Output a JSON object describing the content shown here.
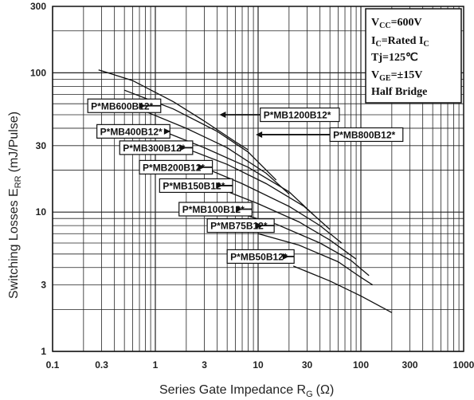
{
  "chart_data": {
    "type": "line",
    "x_scale": "log",
    "y_scale": "log",
    "xlim": [
      0.1,
      1000
    ],
    "ylim": [
      1,
      300
    ],
    "grid": true,
    "xlabel_main": "Series Gate Impedance R",
    "xlabel_sub": "G",
    "xlabel_unit": "(Ω)",
    "ylabel_main": "Switching Losses E",
    "ylabel_sub": "RR",
    "ylabel_unit": "(mJ/Pulse)",
    "x_ticks": [
      "0.1",
      "0.3",
      "1",
      "3",
      "10",
      "30",
      "100",
      "300",
      "1000"
    ],
    "y_ticks": [
      "1",
      "3",
      "10",
      "30",
      "100",
      "300"
    ],
    "conditions": {
      "vcc_main": "V",
      "vcc_sub": "CC",
      "vcc_rest": "=600V",
      "ic_main": "I",
      "ic_sub": "C",
      "ic_rest": "=Rated I",
      "ic_sub2": "C",
      "tj": "Tj=125℃",
      "vge_main": "V",
      "vge_sub": "GE",
      "vge_rest": "=±15V",
      "topology": "Half Bridge"
    },
    "series": [
      {
        "name": "P*MB1200B12*",
        "points": [
          [
            0.28,
            105
          ],
          [
            0.6,
            88
          ],
          [
            1.5,
            62
          ],
          [
            3,
            45
          ],
          [
            6,
            32
          ],
          [
            8,
            28
          ]
        ]
      },
      {
        "name": "P*MB800B12*",
        "points": [
          [
            0.5,
            75
          ],
          [
            1.5,
            55
          ],
          [
            4,
            38
          ],
          [
            8,
            27
          ],
          [
            15,
            17
          ]
        ]
      },
      {
        "name": "P*MB600B12*",
        "points": [
          [
            0.7,
            55
          ],
          [
            2,
            40
          ],
          [
            5,
            29
          ],
          [
            12,
            19
          ],
          [
            20,
            13.5
          ]
        ]
      },
      {
        "name": "P*MB400B12*",
        "points": [
          [
            1.2,
            38
          ],
          [
            3,
            29
          ],
          [
            8,
            21
          ],
          [
            20,
            14
          ],
          [
            35,
            9.5
          ]
        ]
      },
      {
        "name": "P*MB300B12*",
        "points": [
          [
            1.5,
            31
          ],
          [
            5,
            22
          ],
          [
            12,
            16
          ],
          [
            28,
            11
          ],
          [
            50,
            7.5
          ]
        ]
      },
      {
        "name": "P*MB200B12*",
        "points": [
          [
            2.5,
            22
          ],
          [
            7,
            16
          ],
          [
            20,
            11
          ],
          [
            40,
            8
          ],
          [
            65,
            6
          ]
        ]
      },
      {
        "name": "P*MB150B12*",
        "points": [
          [
            4,
            15
          ],
          [
            10,
            11.5
          ],
          [
            25,
            8.5
          ],
          [
            50,
            6.3
          ],
          [
            90,
            4.6
          ]
        ]
      },
      {
        "name": "P*MB100B12*",
        "points": [
          [
            6,
            10
          ],
          [
            15,
            8.2
          ],
          [
            40,
            6
          ],
          [
            80,
            4.5
          ],
          [
            120,
            3.5
          ]
        ]
      },
      {
        "name": "P*MB75B12*",
        "points": [
          [
            10,
            7
          ],
          [
            25,
            5.8
          ],
          [
            60,
            4.4
          ],
          [
            100,
            3.4
          ],
          [
            130,
            3
          ]
        ]
      },
      {
        "name": "P*MB50B12*",
        "points": [
          [
            22,
            4.1
          ],
          [
            50,
            3.2
          ],
          [
            100,
            2.5
          ],
          [
            200,
            1.9
          ]
        ]
      }
    ]
  },
  "labels": [
    {
      "text": "P*MB600B12*",
      "series": 2,
      "side": "left",
      "bx": 0.22,
      "by": 58,
      "arrow_to": 0.8
    },
    {
      "text": "P*MB1200B12*",
      "series": 0,
      "side": "right",
      "bx": 10.5,
      "by": 50,
      "arrow_to": 4.2
    },
    {
      "text": "P*MB400B12*",
      "series": 3,
      "side": "left",
      "bx": 0.27,
      "by": 38,
      "arrow_to": 1.4
    },
    {
      "text": "P*MB800B12*",
      "series": 1,
      "side": "right",
      "bx": 50,
      "by": 36,
      "arrow_to": 9.5
    },
    {
      "text": "P*MB300B12*",
      "series": 4,
      "side": "left",
      "bx": 0.45,
      "by": 29,
      "arrow_to": 2.0
    },
    {
      "text": "P*MB200B12*",
      "series": 5,
      "side": "left",
      "bx": 0.7,
      "by": 21,
      "arrow_to": 3.0
    },
    {
      "text": "P*MB150B12*",
      "series": 6,
      "side": "left",
      "bx": 1.1,
      "by": 15.5,
      "arrow_to": 4.5
    },
    {
      "text": "P*MB100B12*",
      "series": 7,
      "side": "left",
      "bx": 1.7,
      "by": 10.5,
      "arrow_to": 7.0
    },
    {
      "text": "P*MB75B12*",
      "series": 8,
      "side": "left",
      "bx": 3.2,
      "by": 8.0,
      "arrow_to": 11
    },
    {
      "text": "P*MB50B12*",
      "series": 9,
      "side": "left",
      "bx": 5.0,
      "by": 4.8,
      "arrow_to": 20
    }
  ]
}
